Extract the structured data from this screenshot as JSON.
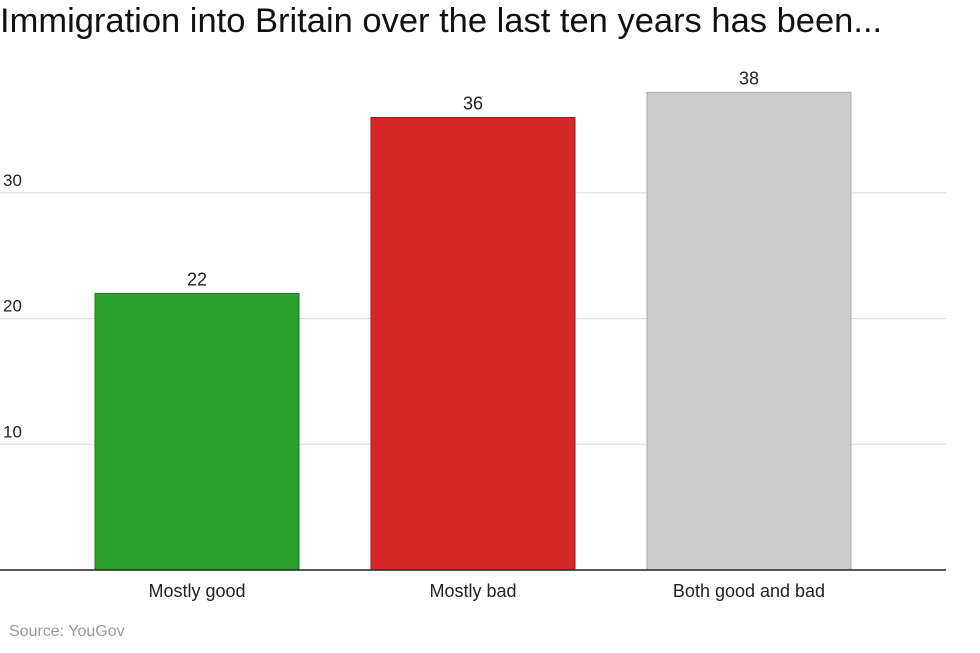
{
  "title": "Immigration into Britain over the last ten years has been...",
  "source": "Source: YouGov",
  "chart_data": {
    "type": "bar",
    "title": "Immigration into Britain over the last ten years has been...",
    "categories": [
      "Mostly good",
      "Mostly bad",
      "Both good and bad"
    ],
    "values": [
      22,
      36,
      38
    ],
    "value_labels": [
      "22",
      "36",
      "38"
    ],
    "colors": [
      "#2ca02c",
      "#d62728",
      "#cccccc"
    ],
    "border_colors": [
      "#1f7a1f",
      "#9e1a1b",
      "#aaaaaa"
    ],
    "ylim": [
      0,
      40
    ],
    "yticks": [
      10,
      20,
      30
    ],
    "ytick_labels": [
      "10",
      "20",
      "30"
    ],
    "grid": true,
    "xlabel": "",
    "ylabel": ""
  }
}
